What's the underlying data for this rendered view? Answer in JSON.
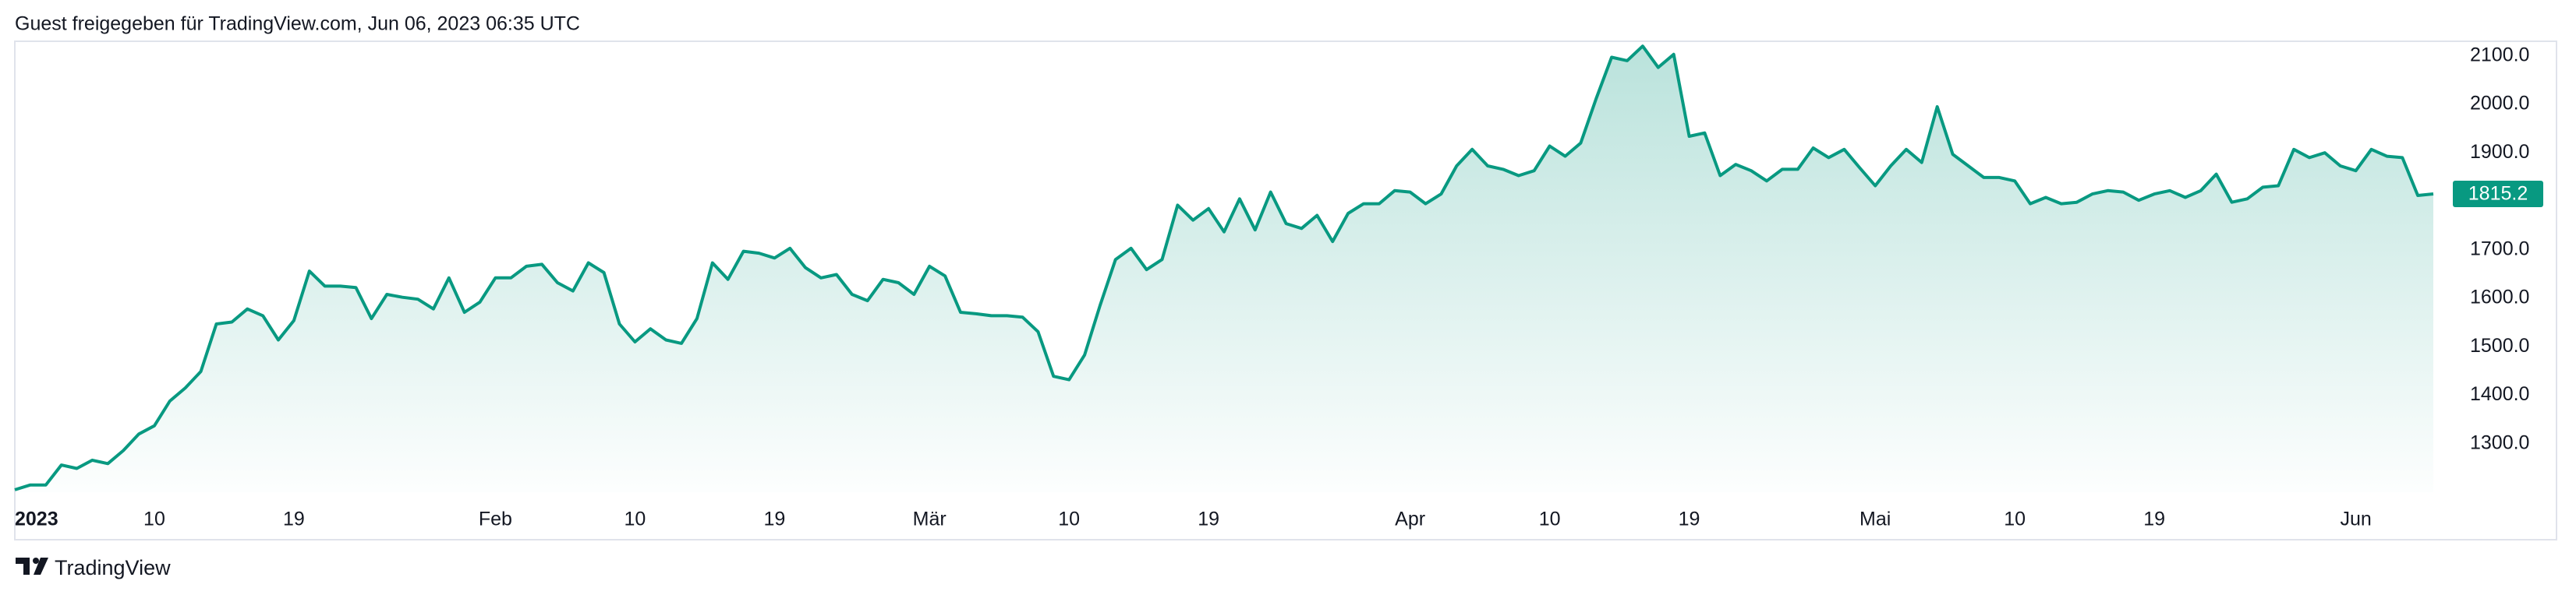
{
  "header": "Guest freigegeben für TradingView.com, Jun 06, 2023 06:35 UTC",
  "brand": "TradingView",
  "chart_data": {
    "type": "area",
    "color": "#089981",
    "grid": false,
    "values": [
      1205,
      1215,
      1215,
      1256,
      1249,
      1266,
      1259,
      1286,
      1320,
      1337,
      1388,
      1415,
      1449,
      1547,
      1551,
      1578,
      1564,
      1514,
      1554,
      1656,
      1625,
      1625,
      1622,
      1558,
      1608,
      1602,
      1598,
      1578,
      1642,
      1571,
      1592,
      1642,
      1642,
      1666,
      1670,
      1632,
      1615,
      1673,
      1653,
      1547,
      1510,
      1537,
      1514,
      1507,
      1558,
      1673,
      1639,
      1697,
      1693,
      1683,
      1703,
      1663,
      1642,
      1649,
      1608,
      1595,
      1639,
      1632,
      1608,
      1666,
      1646,
      1571,
      1568,
      1564,
      1564,
      1561,
      1531,
      1439,
      1432,
      1483,
      1585,
      1680,
      1703,
      1659,
      1680,
      1792,
      1761,
      1785,
      1737,
      1805,
      1741,
      1819,
      1754,
      1744,
      1771,
      1717,
      1775,
      1795,
      1795,
      1822,
      1819,
      1795,
      1815,
      1873,
      1907,
      1873,
      1866,
      1853,
      1863,
      1914,
      1893,
      1920,
      2012,
      2097,
      2090,
      2120,
      2076,
      2103,
      1934,
      1941,
      1853,
      1876,
      1863,
      1842,
      1866,
      1866,
      1910,
      1890,
      1907,
      1869,
      1832,
      1873,
      1907,
      1880,
      1995,
      1897,
      1873,
      1849,
      1849,
      1842,
      1795,
      1808,
      1795,
      1798,
      1815,
      1822,
      1819,
      1802,
      1815,
      1822,
      1808,
      1822,
      1856,
      1798,
      1805,
      1829,
      1832,
      1907,
      1890,
      1900,
      1873,
      1863,
      1907,
      1893,
      1890,
      1812,
      1815.2
    ],
    "xlim": [
      0,
      156.3
    ],
    "xticks": [
      {
        "value": 0,
        "label": "2023"
      },
      {
        "value": 9,
        "label": "10"
      },
      {
        "value": 18,
        "label": "19"
      },
      {
        "value": 31,
        "label": "Feb"
      },
      {
        "value": 40,
        "label": "10"
      },
      {
        "value": 49,
        "label": "19"
      },
      {
        "value": 59,
        "label": "Mär"
      },
      {
        "value": 68,
        "label": "10"
      },
      {
        "value": 77,
        "label": "19"
      },
      {
        "value": 90,
        "label": "Apr"
      },
      {
        "value": 99,
        "label": "10"
      },
      {
        "value": 108,
        "label": "19"
      },
      {
        "value": 120,
        "label": "Mai"
      },
      {
        "value": 129,
        "label": "10"
      },
      {
        "value": 138,
        "label": "19"
      },
      {
        "value": 151,
        "label": "Jun"
      }
    ],
    "ylim": [
      1200,
      2130
    ],
    "yticks": [
      {
        "value": 1300,
        "label": "1300.0"
      },
      {
        "value": 1400,
        "label": "1400.0"
      },
      {
        "value": 1500,
        "label": "1500.0"
      },
      {
        "value": 1600,
        "label": "1600.0"
      },
      {
        "value": 1700,
        "label": "1700.0"
      },
      {
        "value": 1800,
        "label": "1800.0"
      },
      {
        "value": 1900,
        "label": "1900.0"
      },
      {
        "value": 2000,
        "label": "2000.0"
      },
      {
        "value": 2100,
        "label": "2100.0"
      }
    ]
  }
}
